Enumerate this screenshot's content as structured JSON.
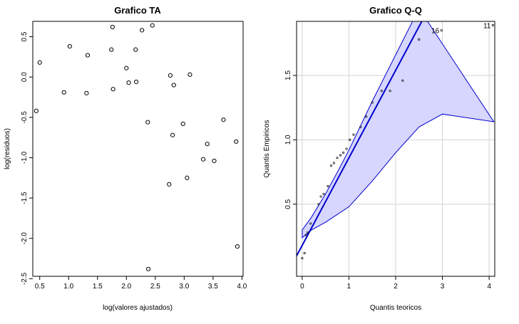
{
  "chart_data": [
    {
      "type": "scatter",
      "title": "Grafico TA",
      "xlabel": "log(valores ajustados)",
      "ylabel": "log(residuos)",
      "xlim": [
        0.38,
        4.02
      ],
      "ylim": [
        -2.47,
        0.69
      ],
      "xticks": [
        0.5,
        1.0,
        1.5,
        2.0,
        2.5,
        3.0,
        3.5,
        4.0
      ],
      "xtick_labels": [
        "0.5",
        "1.0",
        "1.5",
        "2.0",
        "2.5",
        "3.0",
        "3.5",
        "4.0"
      ],
      "yticks": [
        -2.5,
        -2.0,
        -1.5,
        -1.0,
        -0.5,
        0.0,
        0.5
      ],
      "ytick_labels": [
        "-2.5",
        "-2.0",
        "-1.5",
        "-1.0",
        "-0.5",
        "0.0",
        "0.5"
      ],
      "grid": false,
      "points": [
        [
          0.44,
          -0.42
        ],
        [
          0.5,
          0.18
        ],
        [
          0.92,
          -0.19
        ],
        [
          1.02,
          0.38
        ],
        [
          1.31,
          -0.2
        ],
        [
          1.33,
          0.27
        ],
        [
          1.74,
          0.34
        ],
        [
          1.76,
          0.62
        ],
        [
          1.77,
          -0.15
        ],
        [
          2.0,
          0.11
        ],
        [
          2.04,
          -0.07
        ],
        [
          2.16,
          0.34
        ],
        [
          2.17,
          -0.06
        ],
        [
          2.27,
          0.58
        ],
        [
          2.37,
          -0.56
        ],
        [
          2.38,
          -2.38
        ],
        [
          2.45,
          0.64
        ],
        [
          2.74,
          -1.33
        ],
        [
          2.76,
          0.02
        ],
        [
          2.8,
          -0.72
        ],
        [
          2.82,
          -0.1
        ],
        [
          2.98,
          -0.58
        ],
        [
          3.05,
          -1.25
        ],
        [
          3.1,
          0.03
        ],
        [
          3.33,
          -1.02
        ],
        [
          3.4,
          -0.83
        ],
        [
          3.52,
          -1.04
        ],
        [
          3.68,
          -0.53
        ],
        [
          3.9,
          -0.8
        ],
        [
          3.92,
          -2.1
        ]
      ]
    },
    {
      "type": "scatter",
      "title": "Grafico Q-Q",
      "xlabel": "Quantis teoricos",
      "ylabel": "Quantis Empiricos",
      "xlim": [
        -0.12,
        4.12
      ],
      "ylim": [
        -0.06,
        1.92
      ],
      "xticks": [
        0,
        1,
        2,
        3,
        4
      ],
      "xtick_labels": [
        "0",
        "1",
        "2",
        "3",
        "4"
      ],
      "yticks": [
        0.5,
        1.0,
        1.5
      ],
      "ytick_labels": [
        "0.5",
        "1.0",
        "1.5"
      ],
      "grid": true,
      "fill_color": "#d6d6ff",
      "line_color": "#0000cc",
      "reference_line": {
        "intercept": 0.18,
        "slope": 0.68
      },
      "band_upper": [
        [
          0.0,
          0.3
        ],
        [
          0.2,
          0.4
        ],
        [
          0.5,
          0.58
        ],
        [
          0.8,
          0.78
        ],
        [
          1.0,
          0.92
        ],
        [
          1.5,
          1.3
        ],
        [
          2.0,
          1.66
        ],
        [
          2.5,
          2.02
        ]
      ],
      "band_lower": [
        [
          4.1,
          1.14
        ],
        [
          3.0,
          1.2
        ],
        [
          2.5,
          1.1
        ],
        [
          2.0,
          0.9
        ],
        [
          1.5,
          0.68
        ],
        [
          1.0,
          0.48
        ],
        [
          0.5,
          0.36
        ],
        [
          0.2,
          0.3
        ],
        [
          0.0,
          0.24
        ]
      ],
      "points": [
        [
          0.0,
          0.08
        ],
        [
          0.05,
          0.12
        ],
        [
          0.08,
          0.26
        ],
        [
          0.12,
          0.28
        ],
        [
          0.18,
          0.35
        ],
        [
          0.35,
          0.5
        ],
        [
          0.4,
          0.56
        ],
        [
          0.46,
          0.58
        ],
        [
          0.55,
          0.64
        ],
        [
          0.62,
          0.8
        ],
        [
          0.68,
          0.82
        ],
        [
          0.75,
          0.86
        ],
        [
          0.82,
          0.88
        ],
        [
          0.88,
          0.9
        ],
        [
          0.95,
          0.93
        ],
        [
          1.02,
          1.0
        ],
        [
          1.1,
          1.04
        ],
        [
          1.25,
          1.1
        ],
        [
          1.37,
          1.18
        ],
        [
          1.5,
          1.29
        ],
        [
          1.7,
          1.38
        ],
        [
          1.88,
          1.38
        ],
        [
          2.15,
          1.46
        ],
        [
          2.5,
          1.78
        ]
      ],
      "labeled_points": [
        {
          "x": 2.98,
          "y": 1.85,
          "label": "16"
        },
        {
          "x": 4.08,
          "y": 1.89,
          "label": "11"
        }
      ]
    }
  ]
}
